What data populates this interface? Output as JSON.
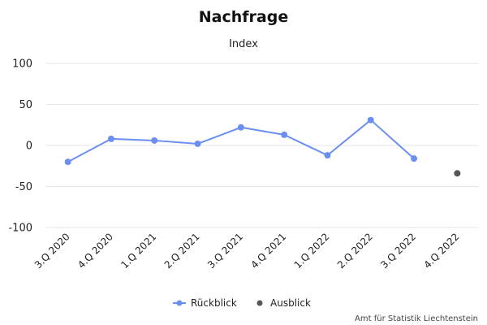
{
  "chart_data": {
    "type": "line",
    "title": "Nachfrage",
    "subtitle": "Index",
    "categories": [
      "3.Q 2020",
      "4.Q 2020",
      "1.Q 2021",
      "2.Q 2021",
      "3.Q 2021",
      "4.Q 2021",
      "1.Q 2022",
      "2.Q 2022",
      "3.Q 2022",
      "4.Q 2022"
    ],
    "series": [
      {
        "name": "Rückblick",
        "color": "#6b8ff0",
        "values": [
          -20,
          8,
          6,
          2,
          22,
          13,
          -12,
          31,
          -16,
          null
        ]
      },
      {
        "name": "Ausblick",
        "color": "#555555",
        "values": [
          null,
          null,
          null,
          null,
          null,
          null,
          null,
          null,
          null,
          -34
        ]
      }
    ],
    "ylim": [
      -100,
      100
    ],
    "yticks": [
      100,
      50,
      0,
      -50,
      -100
    ],
    "grid": true,
    "legend_position": "bottom-center"
  },
  "credit": "Amt für Statistik Liechtenstein"
}
